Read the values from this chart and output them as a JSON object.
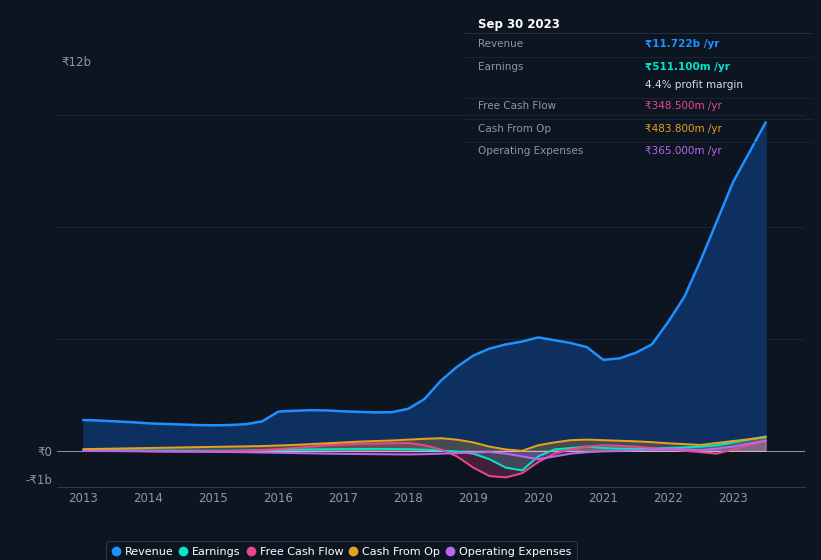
{
  "background_color": "#0d1520",
  "plot_bg_color": "#0d1520",
  "grid_color": "#1a2840",
  "years": [
    2013,
    2013.25,
    2013.5,
    2013.75,
    2014,
    2014.25,
    2014.5,
    2014.75,
    2015,
    2015.25,
    2015.5,
    2015.75,
    2016,
    2016.25,
    2016.5,
    2016.75,
    2017,
    2017.25,
    2017.5,
    2017.75,
    2018,
    2018.25,
    2018.5,
    2018.75,
    2019,
    2019.25,
    2019.5,
    2019.75,
    2020,
    2020.25,
    2020.5,
    2020.75,
    2021,
    2021.25,
    2021.5,
    2021.75,
    2022,
    2022.25,
    2022.5,
    2022.75,
    2023,
    2023.5
  ],
  "revenue": [
    1100,
    1080,
    1050,
    1020,
    980,
    960,
    940,
    920,
    910,
    920,
    950,
    1050,
    1400,
    1430,
    1450,
    1440,
    1410,
    1390,
    1370,
    1380,
    1500,
    1850,
    2500,
    3000,
    3400,
    3650,
    3800,
    3900,
    4050,
    3950,
    3850,
    3700,
    3250,
    3300,
    3500,
    3800,
    4600,
    5500,
    6800,
    8200,
    9600,
    11722
  ],
  "earnings": [
    30,
    25,
    20,
    15,
    10,
    8,
    5,
    3,
    2,
    5,
    10,
    20,
    30,
    40,
    50,
    55,
    60,
    65,
    68,
    65,
    60,
    40,
    10,
    -30,
    -100,
    -300,
    -600,
    -700,
    -200,
    50,
    100,
    150,
    100,
    80,
    70,
    80,
    100,
    120,
    150,
    200,
    300,
    511
  ],
  "free_cash_flow": [
    10,
    5,
    0,
    -5,
    -15,
    -20,
    -25,
    -20,
    -15,
    -5,
    5,
    30,
    60,
    100,
    150,
    200,
    230,
    250,
    260,
    270,
    280,
    200,
    50,
    -200,
    -600,
    -900,
    -950,
    -800,
    -400,
    -100,
    50,
    150,
    200,
    180,
    150,
    100,
    50,
    0,
    -50,
    -100,
    50,
    348.5
  ],
  "cash_from_op": [
    60,
    70,
    80,
    90,
    100,
    110,
    120,
    130,
    140,
    150,
    160,
    170,
    190,
    210,
    240,
    270,
    300,
    330,
    350,
    370,
    400,
    430,
    450,
    400,
    300,
    150,
    50,
    0,
    200,
    300,
    380,
    400,
    380,
    360,
    340,
    310,
    270,
    240,
    210,
    280,
    350,
    483.8
  ],
  "operating_expenses": [
    -5,
    -8,
    -10,
    -15,
    -20,
    -25,
    -30,
    -35,
    -40,
    -45,
    -50,
    -60,
    -70,
    -80,
    -90,
    -100,
    -110,
    -115,
    -120,
    -125,
    -130,
    -120,
    -100,
    -80,
    -60,
    -40,
    -100,
    -200,
    -300,
    -200,
    -100,
    -50,
    -20,
    -10,
    20,
    50,
    80,
    50,
    20,
    80,
    150,
    365
  ],
  "revenue_color": "#1e90ff",
  "earnings_color": "#00e5cc",
  "fcf_color": "#e8488a",
  "cashop_color": "#e8a020",
  "opex_color": "#bb66ee",
  "revenue_fill_color": "#0e3060",
  "ylim_min": -1300,
  "ylim_max": 13500,
  "ylabel_color": "#8899aa",
  "xlabel_color": "#8899aa",
  "info_box_title": "Sep 30 2023",
  "info_rows": [
    {
      "label": "Revenue",
      "value": "₹11.722b /yr",
      "value_color": "#1e90ff",
      "bold": true
    },
    {
      "label": "Earnings",
      "value": "₹511.100m /yr",
      "value_color": "#00e5cc",
      "bold": true
    },
    {
      "label": "",
      "value": "4.4% profit margin",
      "value_color": "#ccddee",
      "bold": false
    },
    {
      "label": "Free Cash Flow",
      "value": "₹348.500m /yr",
      "value_color": "#e8488a",
      "bold": false
    },
    {
      "label": "Cash From Op",
      "value": "₹483.800m /yr",
      "value_color": "#e8a020",
      "bold": false
    },
    {
      "label": "Operating Expenses",
      "value": "₹365.000m /yr",
      "value_color": "#bb66ee",
      "bold": false
    }
  ],
  "legend_items": [
    {
      "label": "Revenue",
      "color": "#1e90ff"
    },
    {
      "label": "Earnings",
      "color": "#00e5cc"
    },
    {
      "label": "Free Cash Flow",
      "color": "#e8488a"
    },
    {
      "label": "Cash From Op",
      "color": "#e8a020"
    },
    {
      "label": "Operating Expenses",
      "color": "#bb66ee"
    }
  ]
}
